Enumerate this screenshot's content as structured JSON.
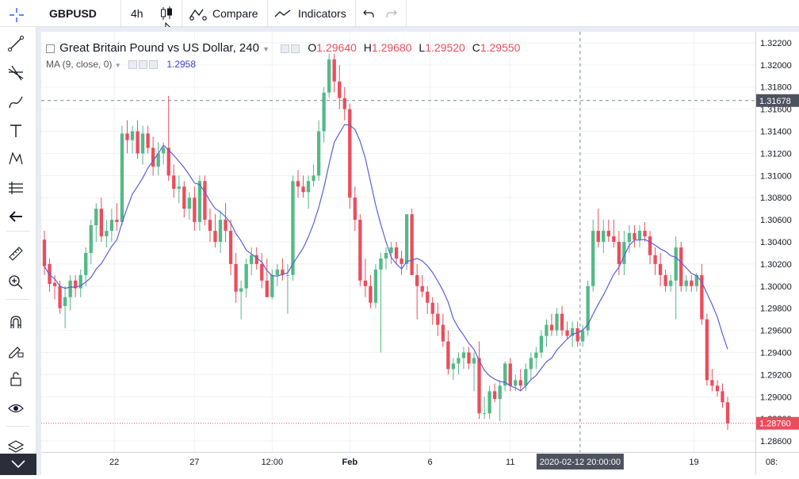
{
  "toolbar": {
    "symbol": "GBPUSD",
    "interval": "4h",
    "compare_label": "Compare",
    "indicators_label": "Indicators"
  },
  "legend": {
    "title": "Great Britain Pound vs US Dollar, 240",
    "o_label": "O",
    "o_value": "1.29640",
    "h_label": "H",
    "h_value": "1.29680",
    "l_label": "L",
    "l_value": "1.29520",
    "c_label": "C",
    "c_value": "1.29550",
    "ma_label": "MA (9, close, 0)",
    "ma_value": "1.2958"
  },
  "colors": {
    "up": "#53b987",
    "down": "#eb4d5c",
    "ma": "#5a5fd6",
    "ohlc_value": "#eb4d5c",
    "crosshair_label_bg": "#4c525e",
    "price_label_bg": "#eb4d5c"
  },
  "crosshair": {
    "price_label": "1.31678",
    "time_label": "2020-02-12 20:00:00"
  },
  "last_price_label": "1.28760",
  "chart_data": {
    "type": "candlestick",
    "symbol": "GBPUSD",
    "interval": "240",
    "y_ticks": [
      "1.32200",
      "1.32000",
      "1.31800",
      "1.31600",
      "1.31400",
      "1.31200",
      "1.31000",
      "1.30800",
      "1.30600",
      "1.30400",
      "1.30200",
      "1.30000",
      "1.29800",
      "1.29600",
      "1.29400",
      "1.29200",
      "1.29000",
      "1.28800",
      "1.28600"
    ],
    "x_ticks": [
      "22",
      "27",
      "12:00",
      "Feb",
      "6",
      "11",
      "19",
      "08:"
    ],
    "ylim": [
      1.285,
      1.323
    ],
    "candles": [
      [
        1.3042,
        1.305,
        1.301,
        1.3018
      ],
      [
        1.302,
        1.3025,
        1.2995,
        1.3002
      ],
      [
        1.3003,
        1.301,
        1.2988,
        1.3
      ],
      [
        1.3,
        1.3005,
        1.2975,
        1.298
      ],
      [
        1.2982,
        1.3,
        1.2962,
        1.299
      ],
      [
        1.299,
        1.301,
        1.2978,
        1.3005
      ],
      [
        1.3005,
        1.301,
        1.299,
        1.2998
      ],
      [
        1.2998,
        1.3015,
        1.299,
        1.301
      ],
      [
        1.301,
        1.3035,
        1.3,
        1.303
      ],
      [
        1.303,
        1.306,
        1.302,
        1.3055
      ],
      [
        1.3055,
        1.3075,
        1.304,
        1.307
      ],
      [
        1.307,
        1.308,
        1.304,
        1.3045
      ],
      [
        1.3045,
        1.306,
        1.3035,
        1.305
      ],
      [
        1.305,
        1.307,
        1.304,
        1.306
      ],
      [
        1.306,
        1.3075,
        1.305,
        1.3058
      ],
      [
        1.3058,
        1.3145,
        1.3055,
        1.3138
      ],
      [
        1.3138,
        1.315,
        1.312,
        1.3132
      ],
      [
        1.3132,
        1.3145,
        1.312,
        1.314
      ],
      [
        1.314,
        1.315,
        1.3115,
        1.312
      ],
      [
        1.312,
        1.3145,
        1.311,
        1.3138
      ],
      [
        1.3138,
        1.3145,
        1.312,
        1.3125
      ],
      [
        1.3125,
        1.3135,
        1.31,
        1.3108
      ],
      [
        1.3108,
        1.313,
        1.31,
        1.312
      ],
      [
        1.312,
        1.313,
        1.311,
        1.3125
      ],
      [
        1.3125,
        1.3172,
        1.3095,
        1.31
      ],
      [
        1.31,
        1.311,
        1.308,
        1.3088
      ],
      [
        1.3088,
        1.31,
        1.3075,
        1.309
      ],
      [
        1.309,
        1.3095,
        1.3062,
        1.307
      ],
      [
        1.307,
        1.3085,
        1.306,
        1.308
      ],
      [
        1.308,
        1.309,
        1.305,
        1.3058
      ],
      [
        1.3058,
        1.31,
        1.305,
        1.3095
      ],
      [
        1.3095,
        1.31,
        1.3055,
        1.306
      ],
      [
        1.306,
        1.307,
        1.304,
        1.305
      ],
      [
        1.305,
        1.3065,
        1.3035,
        1.304
      ],
      [
        1.304,
        1.3068,
        1.303,
        1.306
      ],
      [
        1.306,
        1.3075,
        1.304,
        1.305
      ],
      [
        1.305,
        1.306,
        1.301,
        1.302
      ],
      [
        1.302,
        1.303,
        1.2985,
        1.2995
      ],
      [
        1.2995,
        1.3005,
        1.297,
        1.2998
      ],
      [
        1.2998,
        1.3025,
        1.299,
        1.302
      ],
      [
        1.302,
        1.3035,
        1.301,
        1.3028
      ],
      [
        1.3028,
        1.3035,
        1.3015,
        1.302
      ],
      [
        1.302,
        1.303,
        1.2998,
        1.3005
      ],
      [
        1.3005,
        1.3025,
        1.299,
        1.299
      ],
      [
        1.299,
        1.3015,
        1.2988,
        1.301
      ],
      [
        1.301,
        1.302,
        1.3,
        1.3015
      ],
      [
        1.3015,
        1.3025,
        1.3005,
        1.301
      ],
      [
        1.301,
        1.302,
        1.2975,
        1.301
      ],
      [
        1.301,
        1.31,
        1.3005,
        1.3095
      ],
      [
        1.3095,
        1.3105,
        1.308,
        1.309
      ],
      [
        1.309,
        1.31,
        1.308,
        1.3085
      ],
      [
        1.3085,
        1.31,
        1.307,
        1.3095
      ],
      [
        1.3095,
        1.311,
        1.309,
        1.31
      ],
      [
        1.31,
        1.315,
        1.3095,
        1.314
      ],
      [
        1.314,
        1.318,
        1.313,
        1.3175
      ],
      [
        1.3175,
        1.321,
        1.317,
        1.3205
      ],
      [
        1.3205,
        1.321,
        1.3175,
        1.3185
      ],
      [
        1.3185,
        1.32,
        1.316,
        1.317
      ],
      [
        1.317,
        1.318,
        1.315,
        1.316
      ],
      [
        1.316,
        1.3165,
        1.307,
        1.308
      ],
      [
        1.308,
        1.309,
        1.305,
        1.306
      ],
      [
        1.306,
        1.3065,
        1.3,
        1.3005
      ],
      [
        1.3005,
        1.3025,
        1.299,
        1.3
      ],
      [
        1.3,
        1.301,
        1.298,
        1.2985
      ],
      [
        1.2985,
        1.302,
        1.298,
        1.3015
      ],
      [
        1.3015,
        1.303,
        1.294,
        1.3025
      ],
      [
        1.3025,
        1.3035,
        1.3015,
        1.303
      ],
      [
        1.303,
        1.304,
        1.302,
        1.3035
      ],
      [
        1.3035,
        1.304,
        1.302,
        1.3025
      ],
      [
        1.3025,
        1.3032,
        1.301,
        1.302
      ],
      [
        1.302,
        1.3065,
        1.3015,
        1.3065
      ],
      [
        1.3065,
        1.307,
        1.301,
        1.301
      ],
      [
        1.301,
        1.302,
        1.297,
        1.3
      ],
      [
        1.3,
        1.301,
        1.299,
        1.2995
      ],
      [
        1.2995,
        1.3,
        1.2975,
        1.2985
      ],
      [
        1.2985,
        1.299,
        1.2965,
        1.2975
      ],
      [
        1.2975,
        1.2985,
        1.2955,
        1.2965
      ],
      [
        1.2965,
        1.2975,
        1.2945,
        1.295
      ],
      [
        1.295,
        1.296,
        1.292,
        1.2925
      ],
      [
        1.2925,
        1.2935,
        1.2915,
        1.293
      ],
      [
        1.293,
        1.294,
        1.292,
        1.2935
      ],
      [
        1.2935,
        1.2945,
        1.2925,
        1.294
      ],
      [
        1.294,
        1.2945,
        1.2925,
        1.293
      ],
      [
        1.293,
        1.294,
        1.2905,
        1.2935
      ],
      [
        1.2935,
        1.295,
        1.288,
        1.2885
      ],
      [
        1.2885,
        1.29,
        1.288,
        1.2885
      ],
      [
        1.2885,
        1.291,
        1.288,
        1.2905
      ],
      [
        1.2905,
        1.2912,
        1.2895,
        1.2898
      ],
      [
        1.2898,
        1.2915,
        1.2878,
        1.291
      ],
      [
        1.291,
        1.2932,
        1.2905,
        1.293
      ],
      [
        1.293,
        1.2935,
        1.2905,
        1.291
      ],
      [
        1.291,
        1.292,
        1.2905,
        1.2915
      ],
      [
        1.2915,
        1.2925,
        1.2905,
        1.291
      ],
      [
        1.291,
        1.293,
        1.2905,
        1.2925
      ],
      [
        1.2925,
        1.294,
        1.2915,
        1.2935
      ],
      [
        1.2935,
        1.2945,
        1.2925,
        1.294
      ],
      [
        1.294,
        1.296,
        1.2935,
        1.2955
      ],
      [
        1.2955,
        1.297,
        1.2945,
        1.2965
      ],
      [
        1.2965,
        1.2975,
        1.2955,
        1.296
      ],
      [
        1.296,
        1.298,
        1.2955,
        1.2975
      ],
      [
        1.2975,
        1.2982,
        1.2955,
        1.296
      ],
      [
        1.296,
        1.2968,
        1.2952,
        1.2955
      ],
      [
        1.2955,
        1.2968,
        1.2945,
        1.2962
      ],
      [
        1.2962,
        1.2968,
        1.2945,
        1.295
      ],
      [
        1.295,
        1.2965,
        1.2945,
        1.296
      ],
      [
        1.296,
        1.3005,
        1.2955,
        1.3
      ],
      [
        1.3,
        1.306,
        1.2995,
        1.305
      ],
      [
        1.305,
        1.307,
        1.3035,
        1.304
      ],
      [
        1.304,
        1.306,
        1.303,
        1.305
      ],
      [
        1.305,
        1.306,
        1.304,
        1.3045
      ],
      [
        1.3045,
        1.306,
        1.3035,
        1.304
      ],
      [
        1.304,
        1.305,
        1.301,
        1.302
      ],
      [
        1.302,
        1.305,
        1.301,
        1.304
      ],
      [
        1.304,
        1.3055,
        1.303,
        1.3048
      ],
      [
        1.3048,
        1.3055,
        1.3035,
        1.3042
      ],
      [
        1.3042,
        1.3055,
        1.3035,
        1.305
      ],
      [
        1.305,
        1.3058,
        1.304,
        1.3045
      ],
      [
        1.3045,
        1.305,
        1.302,
        1.3028
      ],
      [
        1.3028,
        1.3035,
        1.301,
        1.302
      ],
      [
        1.302,
        1.303,
        1.3,
        1.301
      ],
      [
        1.301,
        1.3015,
        1.2995,
        1.3
      ],
      [
        1.3,
        1.301,
        1.2995,
        1.3005
      ],
      [
        1.3005,
        1.3045,
        1.297,
        1.3035
      ],
      [
        1.3035,
        1.304,
        1.2995,
        1.3
      ],
      [
        1.3,
        1.301,
        1.2995,
        1.3005
      ],
      [
        1.3005,
        1.301,
        1.2995,
        1.3
      ],
      [
        1.3,
        1.3012,
        1.2995,
        1.301
      ],
      [
        1.301,
        1.302,
        1.2965,
        1.297
      ],
      [
        1.297,
        1.2975,
        1.291,
        1.2915
      ],
      [
        1.2915,
        1.2925,
        1.2905,
        1.291
      ],
      [
        1.291,
        1.2915,
        1.29,
        1.2905
      ],
      [
        1.2905,
        1.2912,
        1.289,
        1.2895
      ],
      [
        1.2895,
        1.29,
        1.287,
        1.2876
      ]
    ],
    "ma_label": "MA (9, close, 0)",
    "ma_last_value": 1.2958
  }
}
